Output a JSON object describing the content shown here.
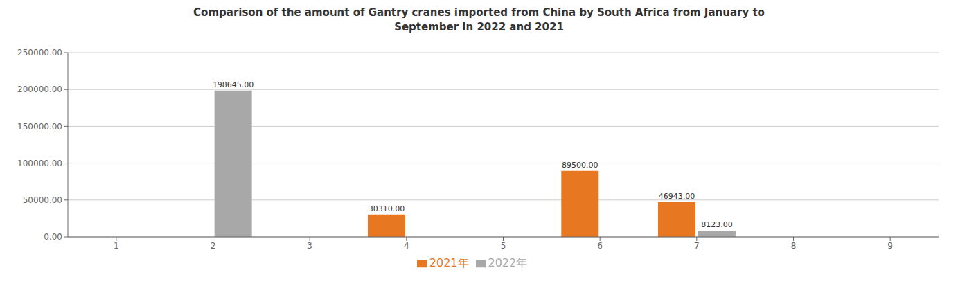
{
  "chart_data": {
    "type": "bar",
    "title": "Comparison of the amount of Gantry cranes imported from China by South Africa from January to\nSeptember in 2022 and 2021",
    "categories": [
      1,
      2,
      3,
      4,
      5,
      6,
      7,
      8,
      9
    ],
    "series": [
      {
        "name": "2021年",
        "color": "#E87722",
        "values": [
          0,
          0,
          0,
          30310,
          0,
          89500,
          46943,
          0,
          0
        ],
        "value_labels": [
          null,
          null,
          null,
          "30310.00",
          null,
          "89500.00",
          "46943.00",
          null,
          null
        ]
      },
      {
        "name": "2022年",
        "color": "#A8A8A8",
        "values": [
          0,
          198645,
          0,
          0,
          0,
          0,
          8123,
          0,
          0
        ],
        "value_labels": [
          null,
          "198645.00",
          null,
          null,
          null,
          null,
          "8123.00",
          null,
          null
        ]
      }
    ],
    "ylim": [
      0,
      250000
    ],
    "yticks": [
      {
        "value": 0,
        "label": "0.00"
      },
      {
        "value": 50000,
        "label": "50000.00"
      },
      {
        "value": 100000,
        "label": "100000.00"
      },
      {
        "value": 150000,
        "label": "150000.00"
      },
      {
        "value": 200000,
        "label": "200000.00"
      },
      {
        "value": 250000,
        "label": "250000.00"
      }
    ],
    "grid": true,
    "data_labels": true,
    "legend": "bottom"
  }
}
